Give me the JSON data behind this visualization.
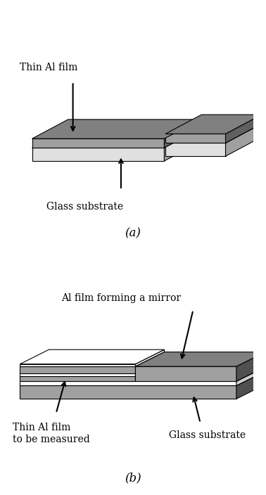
{
  "bg_color": "#ffffff",
  "dark_gray": "#808080",
  "medium_gray": "#a0a0a0",
  "light_gray": "#c8c8c8",
  "very_light_gray": "#e0e0e0",
  "white": "#ffffff",
  "black": "#000000",
  "label_a": "(a)",
  "label_b": "(b)",
  "title_a_text": "Thin Al film",
  "glass_substrate": "Glass substrate",
  "label_b_mirror": "Al film forming a mirror",
  "label_b_thin": "Thin Al film\nto be measured",
  "label_b_glass": "Glass substrate",
  "font_size": 10,
  "font_size_label": 12
}
